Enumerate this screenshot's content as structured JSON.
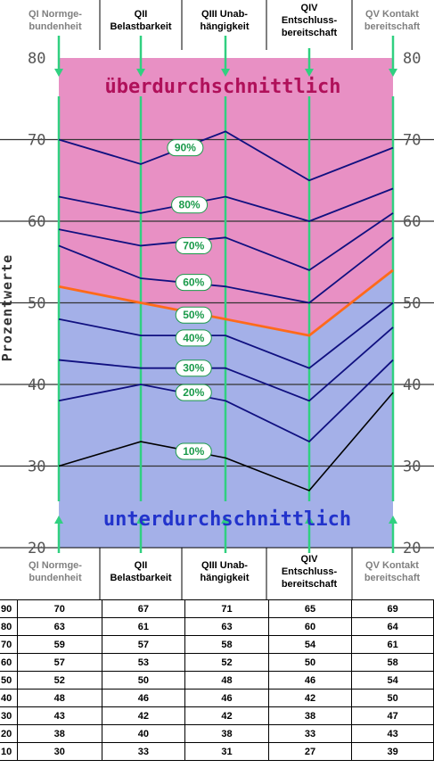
{
  "columns_top": [
    {
      "l1": "QI Normge-",
      "l2": "bundenheit"
    },
    {
      "l1": "QII",
      "l2": "Belastbarkeit"
    },
    {
      "l1": "QIII Unab-",
      "l2": "hängigkeit"
    },
    {
      "l1": "QIV",
      "l2": "Entschluss-",
      "l3": "bereitschaft"
    },
    {
      "l1": "QV Kontakt",
      "l2": "bereitschaft"
    }
  ],
  "columns_bottom": [
    {
      "l1": "QI Normge-",
      "l2": "bundenheit"
    },
    {
      "l1": "QII",
      "l2": "Belastbarkeit"
    },
    {
      "l1": "QIII Unab-",
      "l2": "hängigkeit"
    },
    {
      "l1": "QIV",
      "l2": "Entschluss-",
      "l3": "bereitschaft"
    },
    {
      "l1": "QV Kontakt",
      "l2": "bereitschaft"
    }
  ],
  "colors": {
    "upper_zone": "#e890c4",
    "lower_zone": "#a4b0e8",
    "percentile_line": "#101080",
    "median_line": "#ff6a1a",
    "p10_line": "#000000",
    "arrow": "#30d080",
    "grid": "#333333"
  },
  "chart_data": {
    "type": "line",
    "categories": [
      "QI Normgebundenheit",
      "QII Belastbarkeit",
      "QIII Unabhängigkeit",
      "QIV Entschlussbereitschaft",
      "QV Kontaktbereitschaft"
    ],
    "ylabel": "Prozentwerte",
    "ylim": [
      20,
      80
    ],
    "yticks": [
      20,
      30,
      40,
      50,
      60,
      70,
      80
    ],
    "zone_above_label": "überdurchschnittlich",
    "zone_below_label": "unterdurchschnittlich",
    "series": [
      {
        "name": "90%",
        "label_pos": [
          1.3,
          69
        ],
        "values": [
          70,
          67,
          71,
          65,
          69
        ]
      },
      {
        "name": "80%",
        "label_pos": [
          1.35,
          62
        ],
        "values": [
          63,
          61,
          63,
          60,
          64
        ]
      },
      {
        "name": "70%",
        "label_pos": [
          1.4,
          57
        ],
        "values": [
          59,
          57,
          58,
          54,
          61
        ]
      },
      {
        "name": "60%",
        "label_pos": [
          1.4,
          52.5
        ],
        "values": [
          57,
          53,
          52,
          50,
          58
        ]
      },
      {
        "name": "50%",
        "label_pos": [
          1.4,
          48.5
        ],
        "values": [
          52,
          50,
          48,
          46,
          54
        ]
      },
      {
        "name": "40%",
        "label_pos": [
          1.4,
          45.7
        ],
        "values": [
          48,
          46,
          46,
          42,
          50
        ]
      },
      {
        "name": "30%",
        "label_pos": [
          1.4,
          42
        ],
        "values": [
          43,
          42,
          42,
          38,
          47
        ]
      },
      {
        "name": "20%",
        "label_pos": [
          1.4,
          39
        ],
        "values": [
          38,
          40,
          38,
          33,
          43
        ]
      },
      {
        "name": "10%",
        "label_pos": [
          1.4,
          31.8
        ],
        "values": [
          30,
          33,
          31,
          27,
          39
        ]
      }
    ]
  },
  "table": {
    "rows": [
      {
        "pct": "90",
        "values": [
          "70",
          "67",
          "71",
          "65",
          "69"
        ]
      },
      {
        "pct": "80",
        "values": [
          "63",
          "61",
          "63",
          "60",
          "64"
        ]
      },
      {
        "pct": "70",
        "values": [
          "59",
          "57",
          "58",
          "54",
          "61"
        ]
      },
      {
        "pct": "60",
        "values": [
          "57",
          "53",
          "52",
          "50",
          "58"
        ]
      },
      {
        "pct": "50",
        "values": [
          "52",
          "50",
          "48",
          "46",
          "54"
        ]
      },
      {
        "pct": "40",
        "values": [
          "48",
          "46",
          "46",
          "42",
          "50"
        ]
      },
      {
        "pct": "30",
        "values": [
          "43",
          "42",
          "42",
          "38",
          "47"
        ]
      },
      {
        "pct": "20",
        "values": [
          "38",
          "40",
          "38",
          "33",
          "43"
        ]
      },
      {
        "pct": "10",
        "values": [
          "30",
          "33",
          "31",
          "27",
          "39"
        ]
      }
    ]
  }
}
